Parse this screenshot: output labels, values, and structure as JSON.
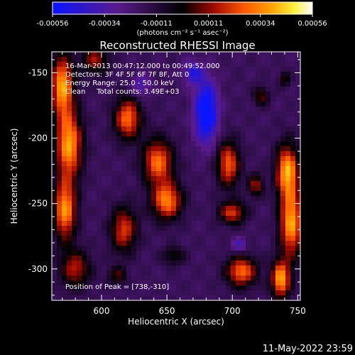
{
  "chart_data": {
    "type": "heatmap",
    "title": "Reconstructed RHESSI Image",
    "xlabel": "Heliocentric X (arcsec)",
    "ylabel": "Heliocentric Y (arcsec)",
    "xlim": [
      562,
      752
    ],
    "ylim": [
      -324,
      -134
    ],
    "x_ticks": [
      600,
      650,
      700,
      750
    ],
    "y_ticks": [
      -150,
      -200,
      -250,
      -300
    ],
    "colorbar": {
      "ticks": [
        "-0.00056",
        "-0.00034",
        "-0.00011",
        "0.00011",
        "0.00034",
        "0.00056"
      ],
      "range": [
        -0.00056,
        0.00056
      ],
      "unit_label": "(photons cm⁻² s⁻¹ asec⁻²)",
      "colors": [
        "#0a14ff",
        "#5a1a8c",
        "#000000",
        "#a00a00",
        "#ff5a00",
        "#ffa000",
        "#fff03c",
        "#ffffff"
      ]
    },
    "annotations": [
      "16-Mar-2013 00:47:12.000 to 00:49:52.000",
      "Detectors: 3F 4F 5F 6F 7F 8F, Att 0",
      "Energy Range: 25.0 - 50.0 keV",
      "Clean     Total counts: 3.49E+03"
    ],
    "peak_text": "Position of Peak = [738,-310]",
    "date_stamp": "11-May-2022 23:59",
    "sources": [
      {
        "x": 570,
        "y": -160,
        "sx": 6,
        "sy": 16,
        "a": 1.0
      },
      {
        "x": 575,
        "y": -205,
        "sx": 7,
        "sy": 18,
        "a": 1.0
      },
      {
        "x": 572,
        "y": -255,
        "sx": 6,
        "sy": 16,
        "a": 0.95
      },
      {
        "x": 580,
        "y": -300,
        "sx": 8,
        "sy": 10,
        "a": 0.6
      },
      {
        "x": 595,
        "y": -140,
        "sx": 7,
        "sy": 8,
        "a": 0.55
      },
      {
        "x": 620,
        "y": -185,
        "sx": 7,
        "sy": 11,
        "a": 0.85
      },
      {
        "x": 617,
        "y": -270,
        "sx": 7,
        "sy": 12,
        "a": 0.7
      },
      {
        "x": 612,
        "y": -305,
        "sx": 5,
        "sy": 5,
        "a": 0.4
      },
      {
        "x": 643,
        "y": -218,
        "sx": 8,
        "sy": 12,
        "a": 0.85
      },
      {
        "x": 650,
        "y": -248,
        "sx": 8,
        "sy": 10,
        "a": 0.9
      },
      {
        "x": 655,
        "y": -290,
        "sx": 6,
        "sy": 5,
        "a": 0.35
      },
      {
        "x": 697,
        "y": -220,
        "sx": 6,
        "sy": 12,
        "a": 0.8
      },
      {
        "x": 700,
        "y": -257,
        "sx": 7,
        "sy": 6,
        "a": 0.7
      },
      {
        "x": 707,
        "y": -302,
        "sx": 8,
        "sy": 8,
        "a": 0.85
      },
      {
        "x": 718,
        "y": -236,
        "sx": 4,
        "sy": 6,
        "a": 0.55
      },
      {
        "x": 742,
        "y": -225,
        "sx": 6,
        "sy": 14,
        "a": 1.0
      },
      {
        "x": 745,
        "y": -265,
        "sx": 6,
        "sy": 18,
        "a": 1.0
      },
      {
        "x": 737,
        "y": -308,
        "sx": 5,
        "sy": 10,
        "a": 1.0
      },
      {
        "x": 722,
        "y": -168,
        "sx": 4,
        "sy": 5,
        "a": 0.45
      },
      {
        "x": 740,
        "y": -155,
        "sx": 3,
        "sy": 4,
        "a": 0.4
      },
      {
        "x": 680,
        "y": -180,
        "sx": 6,
        "sy": 16,
        "a": -0.9
      },
      {
        "x": 670,
        "y": -150,
        "sx": 5,
        "sy": 6,
        "a": -0.5
      },
      {
        "x": 630,
        "y": -160,
        "sx": 5,
        "sy": 6,
        "a": -0.35
      },
      {
        "x": 705,
        "y": -282,
        "sx": 4,
        "sy": 4,
        "a": -0.35
      }
    ]
  }
}
